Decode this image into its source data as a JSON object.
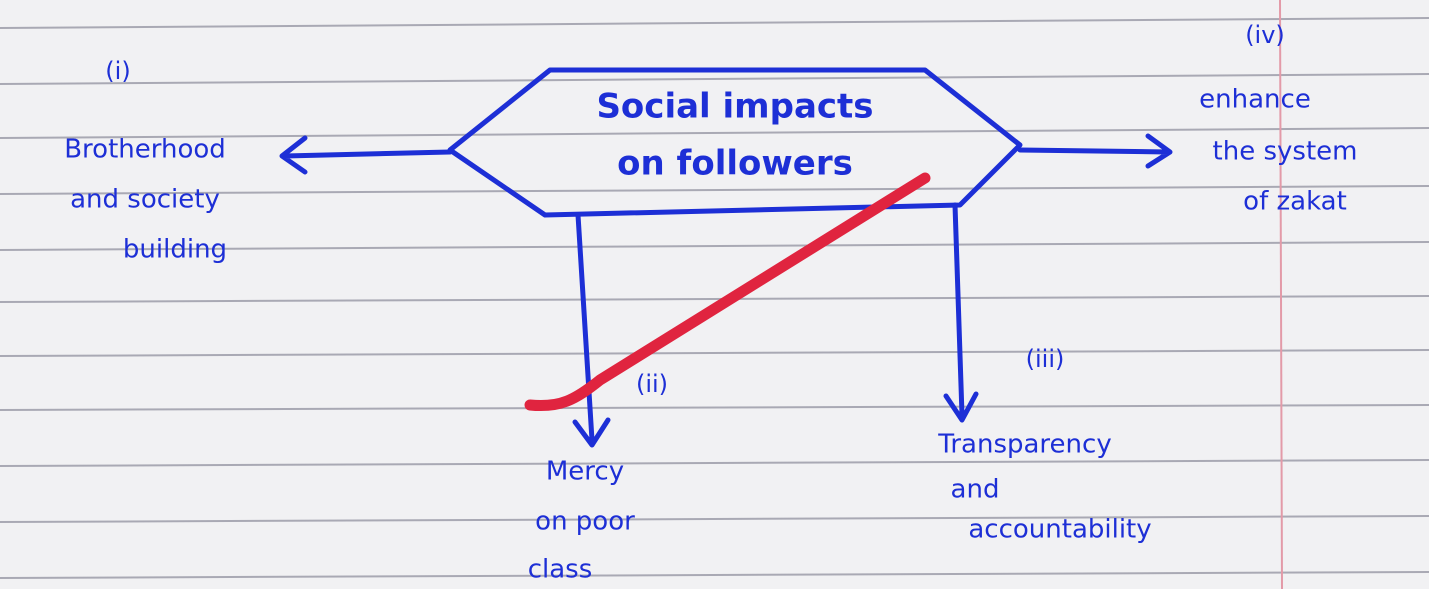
{
  "center": {
    "lines": [
      "Social impacts",
      "on followers"
    ]
  },
  "nodes": [
    {
      "number": "(i)",
      "lines": [
        "Brotherhood",
        "and society",
        "building"
      ]
    },
    {
      "number": "(iv)",
      "lines": [
        "enhance",
        "the system",
        "of zakat"
      ]
    },
    {
      "number": "(ii)",
      "lines": [
        "Mercy",
        "on poor",
        "class"
      ]
    },
    {
      "number": "(iii)",
      "lines": [
        "Transparency",
        "and",
        "accountability"
      ]
    }
  ]
}
